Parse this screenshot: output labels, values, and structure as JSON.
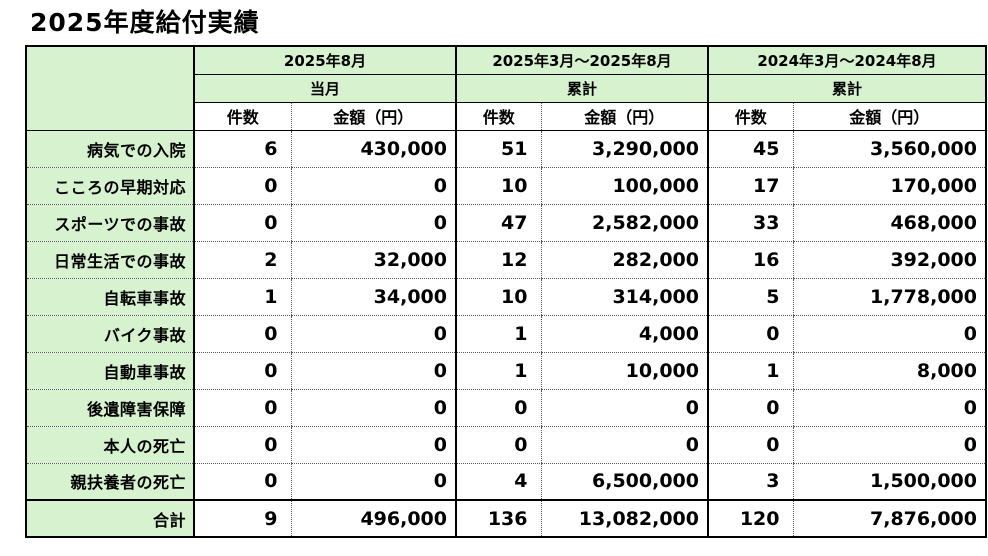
{
  "page_title": "2025年度給付実績",
  "colors": {
    "header_green": "#d6f2ce",
    "border": "#000000",
    "background": "#ffffff"
  },
  "table": {
    "column_groups": [
      {
        "period": "2025年8月",
        "scope": "当月"
      },
      {
        "period": "2025年3月～2025年8月",
        "scope": "累計"
      },
      {
        "period": "2024年3月～2024年8月",
        "scope": "累計"
      }
    ],
    "sub_headers": {
      "count": "件数",
      "amount": "金額（円）"
    },
    "rows": [
      {
        "label": "病気での入院",
        "values": [
          "6",
          "430,000",
          "51",
          "3,290,000",
          "45",
          "3,560,000"
        ]
      },
      {
        "label": "こころの早期対応",
        "values": [
          "0",
          "0",
          "10",
          "100,000",
          "17",
          "170,000"
        ]
      },
      {
        "label": "スポーツでの事故",
        "values": [
          "0",
          "0",
          "47",
          "2,582,000",
          "33",
          "468,000"
        ]
      },
      {
        "label": "日常生活での事故",
        "values": [
          "2",
          "32,000",
          "12",
          "282,000",
          "16",
          "392,000"
        ]
      },
      {
        "label": "自転車事故",
        "values": [
          "1",
          "34,000",
          "10",
          "314,000",
          "5",
          "1,778,000"
        ]
      },
      {
        "label": "バイク事故",
        "values": [
          "0",
          "0",
          "1",
          "4,000",
          "0",
          "0"
        ]
      },
      {
        "label": "自動車事故",
        "values": [
          "0",
          "0",
          "1",
          "10,000",
          "1",
          "8,000"
        ]
      },
      {
        "label": "後遺障害保障",
        "values": [
          "0",
          "0",
          "0",
          "0",
          "0",
          "0"
        ]
      },
      {
        "label": "本人の死亡",
        "values": [
          "0",
          "0",
          "0",
          "0",
          "0",
          "0"
        ]
      },
      {
        "label": "親扶養者の死亡",
        "values": [
          "0",
          "0",
          "4",
          "6,500,000",
          "3",
          "1,500,000"
        ]
      }
    ],
    "total_row": {
      "label": "合計",
      "values": [
        "9",
        "496,000",
        "136",
        "13,082,000",
        "120",
        "7,876,000"
      ]
    }
  }
}
